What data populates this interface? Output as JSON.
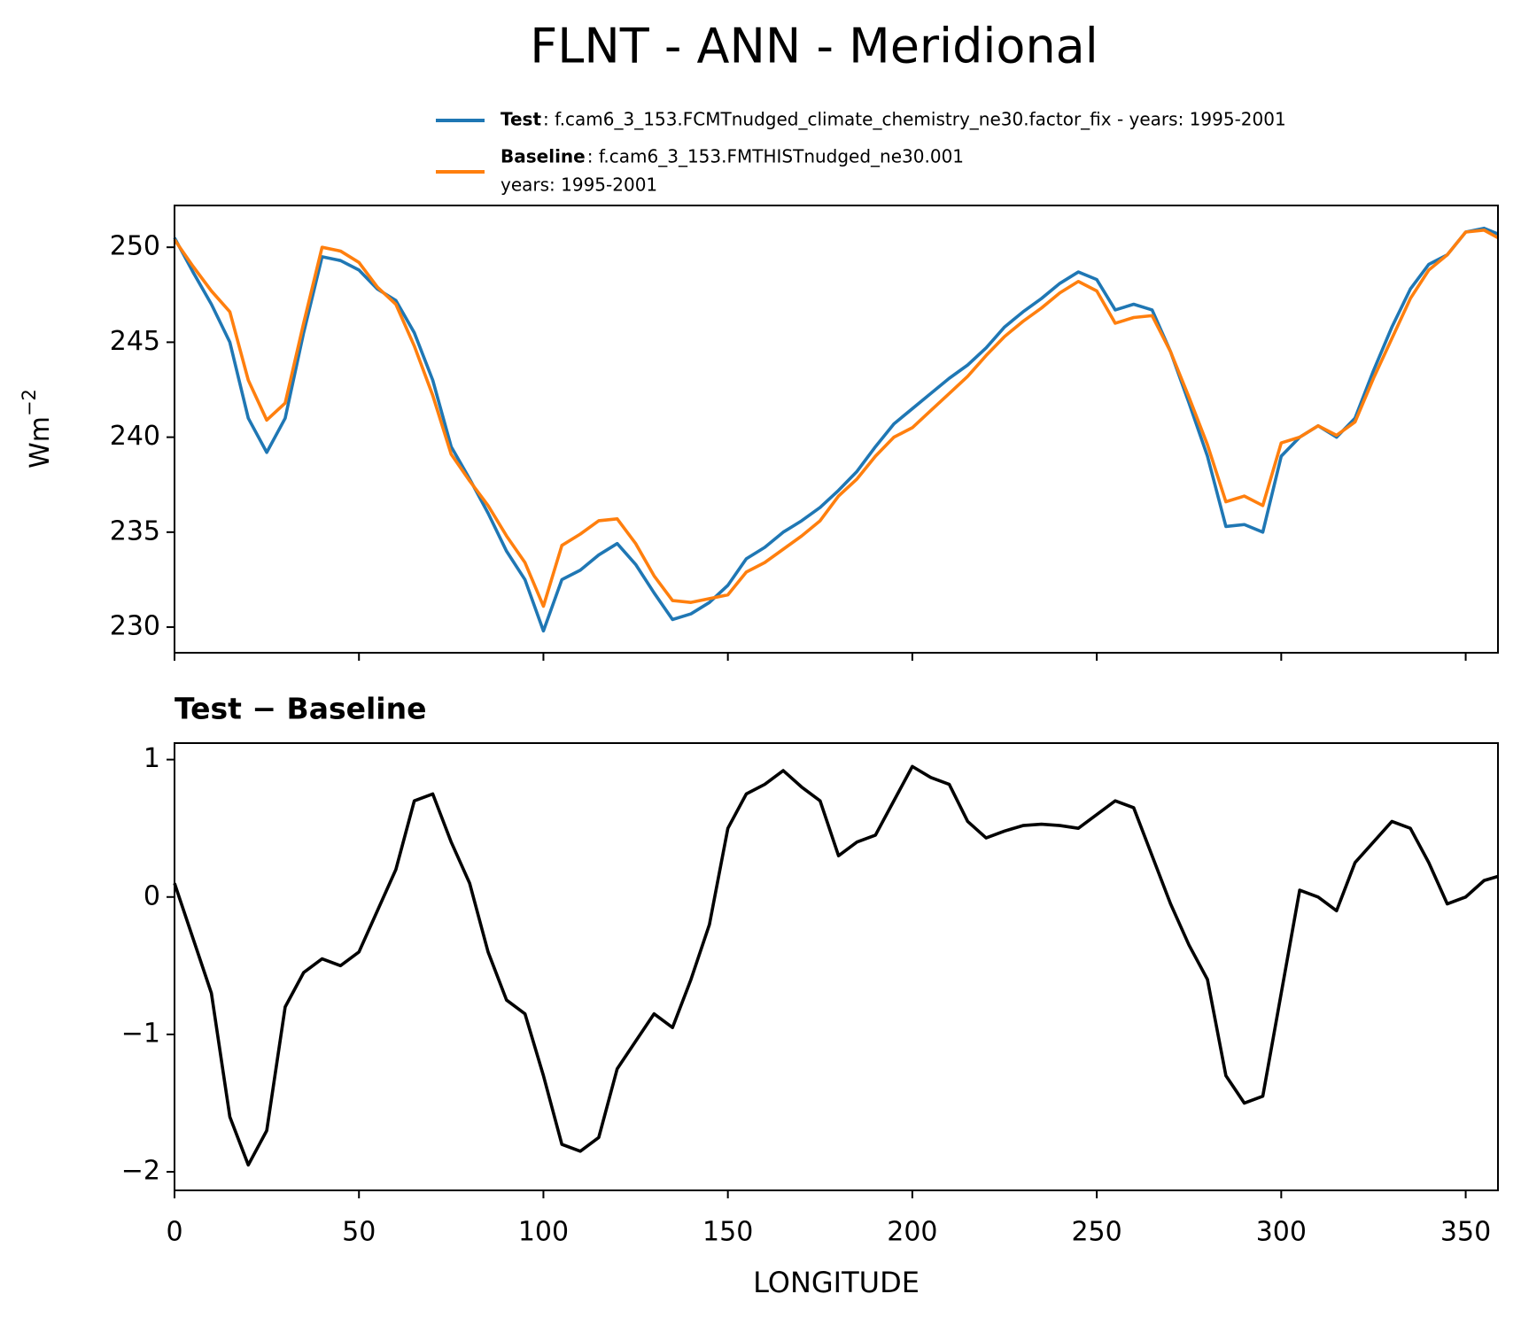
{
  "title": "FLNT - ANN - Meridional",
  "chart_data": [
    {
      "type": "line",
      "ylabel": {
        "text": "Wm",
        "superscript": "−2"
      },
      "x": [
        0,
        5,
        10,
        15,
        20,
        25,
        30,
        35,
        40,
        45,
        50,
        55,
        60,
        65,
        70,
        75,
        80,
        85,
        90,
        95,
        100,
        105,
        110,
        115,
        120,
        125,
        130,
        135,
        140,
        145,
        150,
        155,
        160,
        165,
        170,
        175,
        180,
        185,
        190,
        195,
        200,
        205,
        210,
        215,
        220,
        225,
        230,
        235,
        240,
        245,
        250,
        255,
        260,
        265,
        270,
        275,
        280,
        285,
        290,
        295,
        300,
        305,
        310,
        315,
        320,
        325,
        330,
        335,
        340,
        345,
        350,
        355,
        358.75
      ],
      "series": [
        {
          "name": "Test",
          "description": [
            ": f.cam6_3_153.FCMTnudged_climate_chemistry_ne30.factor_fix - years: 1995-2001"
          ],
          "color": "#1f77b4",
          "values": [
            250.5,
            248.7,
            247,
            245,
            241,
            239.2,
            241,
            245.5,
            249.5,
            249.3,
            248.8,
            247.8,
            247.2,
            245.5,
            243,
            239.5,
            237.8,
            236,
            234,
            232.5,
            229.8,
            232.5,
            233,
            233.8,
            234.4,
            233.3,
            231.8,
            230.4,
            230.7,
            231.3,
            232.2,
            233.6,
            234.2,
            235,
            235.6,
            236.3,
            237.2,
            238.2,
            239.5,
            240.7,
            241.5,
            242.3,
            243.1,
            243.8,
            244.7,
            245.8,
            246.6,
            247.3,
            248.1,
            248.7,
            248.3,
            246.7,
            247,
            246.7,
            244.5,
            241.8,
            239,
            235.3,
            235.4,
            235,
            239,
            240,
            240.6,
            240,
            241,
            243.5,
            245.8,
            247.8,
            249.1,
            249.6,
            250.8,
            251,
            250.7
          ]
        },
        {
          "name": "Baseline",
          "description": [
            ": f.cam6_3_153.FMTHISTnudged_ne30.001",
            "years: 1995-2001"
          ],
          "color": "#ff7f0e",
          "values": [
            250.4,
            249.0,
            247.7,
            246.6,
            243.0,
            240.9,
            241.8,
            246.0,
            250.0,
            249.8,
            249.2,
            247.9,
            247.0,
            244.8,
            242.2,
            239.1,
            237.7,
            236.4,
            234.8,
            233.4,
            231.1,
            234.3,
            234.9,
            235.6,
            235.7,
            234.4,
            232.7,
            231.4,
            231.3,
            231.5,
            231.7,
            232.9,
            233.4,
            234.1,
            234.8,
            235.6,
            236.9,
            237.8,
            239.0,
            240.0,
            240.5,
            241.4,
            242.3,
            243.2,
            244.3,
            245.3,
            246.1,
            246.8,
            247.6,
            248.2,
            247.7,
            246.0,
            246.3,
            246.4,
            244.5,
            242.1,
            239.6,
            236.6,
            236.9,
            236.4,
            239.7,
            240.0,
            240.6,
            240.1,
            240.8,
            243.1,
            245.2,
            247.3,
            248.8,
            249.6,
            250.8,
            250.9,
            250.5
          ]
        }
      ],
      "xlim": [
        0,
        358.75
      ],
      "xticks": [
        0,
        50,
        100,
        150,
        200,
        250,
        300,
        350
      ],
      "ylim": [
        228.65,
        252.2
      ],
      "yticks": [
        230,
        235,
        240,
        245,
        250
      ]
    },
    {
      "type": "line",
      "title": "Test − Baseline",
      "xlabel": "LONGITUDE",
      "x": [
        0,
        5,
        10,
        15,
        20,
        25,
        30,
        35,
        40,
        45,
        50,
        55,
        60,
        65,
        70,
        75,
        80,
        85,
        90,
        95,
        100,
        105,
        110,
        115,
        120,
        125,
        130,
        135,
        140,
        145,
        150,
        155,
        160,
        165,
        170,
        175,
        180,
        185,
        190,
        195,
        200,
        205,
        210,
        215,
        220,
        225,
        230,
        235,
        240,
        245,
        250,
        255,
        260,
        265,
        270,
        275,
        280,
        285,
        290,
        295,
        300,
        305,
        310,
        315,
        320,
        325,
        330,
        335,
        340,
        345,
        350,
        355,
        358.75
      ],
      "values": [
        0.1,
        -0.3,
        -0.7,
        -1.6,
        -1.95,
        -1.7,
        -0.8,
        -0.55,
        -0.45,
        -0.5,
        -0.4,
        -0.1,
        0.2,
        0.7,
        0.75,
        0.4,
        0.1,
        -0.4,
        -0.75,
        -0.85,
        -1.3,
        -1.8,
        -1.85,
        -1.75,
        -1.25,
        -1.05,
        -0.85,
        -0.95,
        -0.6,
        -0.2,
        0.5,
        0.75,
        0.82,
        0.92,
        0.8,
        0.7,
        0.3,
        0.4,
        0.45,
        0.7,
        0.95,
        0.87,
        0.82,
        0.55,
        0.43,
        0.48,
        0.52,
        0.53,
        0.52,
        0.5,
        0.6,
        0.7,
        0.65,
        0.3,
        -0.05,
        -0.35,
        -0.6,
        -1.3,
        -1.5,
        -1.45,
        -0.7,
        0.05,
        0,
        -0.1,
        0.25,
        0.4,
        0.55,
        0.5,
        0.25,
        -0.05,
        0,
        0.12,
        0.15
      ],
      "color": "#000000",
      "xlim": [
        0,
        358.75
      ],
      "xticks": [
        0,
        50,
        100,
        150,
        200,
        250,
        300,
        350
      ],
      "ylim": [
        -2.135,
        1.12
      ],
      "yticks": [
        {
          "value": -2,
          "label": "−2"
        },
        {
          "value": -1,
          "label": "−1"
        },
        0,
        1
      ]
    }
  ]
}
